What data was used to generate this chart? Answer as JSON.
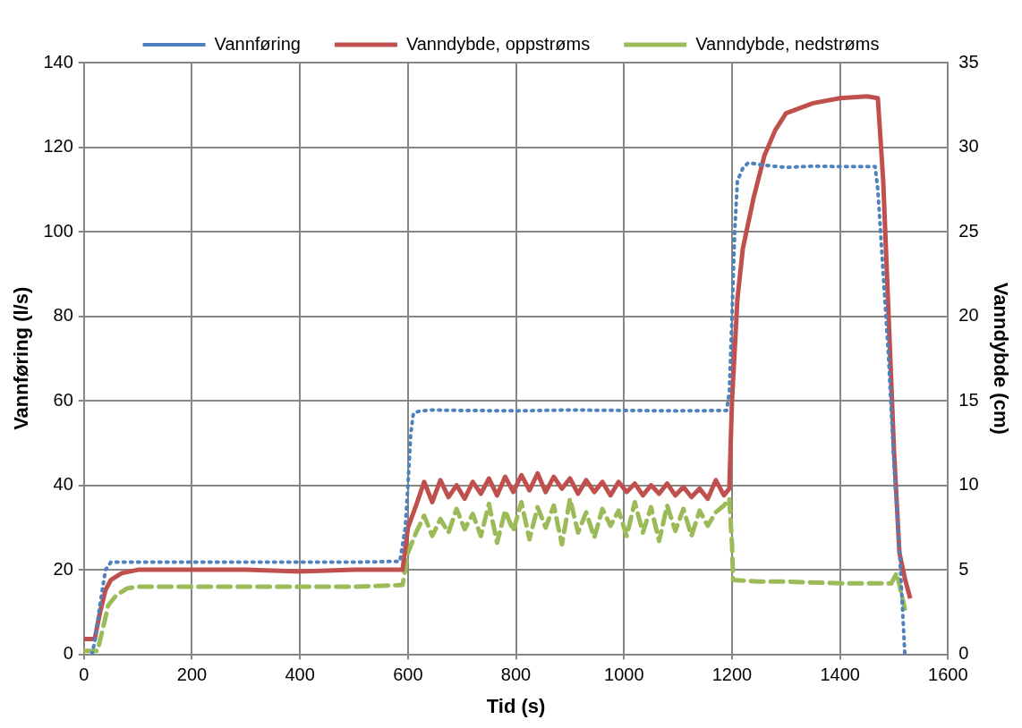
{
  "chart_data": {
    "type": "line",
    "xlabel": "Tid (s)",
    "ylabel": "Vannføring (l/s)",
    "y2label": "Vanndybde (cm)",
    "xlim": [
      0,
      1600
    ],
    "xticks": [
      0,
      200,
      400,
      600,
      800,
      1000,
      1200,
      1400,
      1600
    ],
    "ylim": [
      0,
      140
    ],
    "yticks": [
      0,
      20,
      40,
      60,
      80,
      100,
      120,
      140
    ],
    "y2lim": [
      0,
      35
    ],
    "y2ticks": [
      0,
      5,
      10,
      15,
      20,
      25,
      30,
      35
    ],
    "grid": true,
    "legend": "top",
    "marker": "none",
    "series": [
      {
        "name": "Vannføring",
        "color": "#4f81bd",
        "line_style": "dotted",
        "axis": "y",
        "x": [
          15,
          20,
          30,
          40,
          50,
          100,
          200,
          300,
          400,
          500,
          585,
          595,
          600,
          605,
          610,
          620,
          640,
          700,
          800,
          900,
          1000,
          1100,
          1190,
          1195,
          1200,
          1205,
          1210,
          1220,
          1230,
          1260,
          1300,
          1350,
          1400,
          1465,
          1470,
          1480,
          1490,
          1500,
          1510,
          1520
        ],
        "values": [
          0,
          3,
          12,
          20,
          21.8,
          21.8,
          21.8,
          21.8,
          21.8,
          21.8,
          22,
          30,
          40,
          52,
          57,
          57.5,
          57.8,
          57.7,
          57.6,
          57.8,
          57.7,
          57.6,
          57.7,
          62,
          80,
          100,
          112,
          115,
          116.3,
          115.7,
          115.2,
          115.5,
          115.4,
          115.4,
          110,
          90,
          70,
          45,
          25,
          0
        ]
      },
      {
        "name": "Vanndybde, oppstrøms",
        "color": "#c0504d",
        "line_style": "solid",
        "axis": "y2",
        "x": [
          0,
          20,
          30,
          40,
          50,
          70,
          100,
          200,
          300,
          400,
          500,
          590,
          600,
          615,
          630,
          645,
          660,
          675,
          690,
          705,
          720,
          735,
          750,
          765,
          780,
          795,
          810,
          825,
          840,
          855,
          870,
          885,
          900,
          915,
          930,
          945,
          960,
          975,
          990,
          1005,
          1020,
          1035,
          1050,
          1065,
          1080,
          1095,
          1110,
          1125,
          1140,
          1155,
          1170,
          1185,
          1195,
          1200,
          1210,
          1220,
          1240,
          1260,
          1280,
          1300,
          1350,
          1400,
          1450,
          1470,
          1480,
          1490,
          1500,
          1510,
          1520,
          1530
        ],
        "values": [
          0.9,
          0.9,
          2.5,
          3.8,
          4.4,
          4.8,
          5,
          5,
          5,
          4.9,
          5,
          5,
          7.5,
          8.8,
          10.2,
          9,
          10.3,
          9.3,
          10,
          9.2,
          10.2,
          9.5,
          10.4,
          9.4,
          10.5,
          9.6,
          10.6,
          9.7,
          10.7,
          9.6,
          10.5,
          9.8,
          10.4,
          9.5,
          10.3,
          9.6,
          10.2,
          9.4,
          10.2,
          9.6,
          10.1,
          9.4,
          10,
          9.5,
          10.1,
          9.4,
          9.9,
          9.3,
          9.8,
          9.2,
          10.3,
          9.4,
          9.8,
          15,
          21,
          24,
          27,
          29.5,
          31,
          32,
          32.6,
          32.9,
          33,
          32.9,
          28,
          20,
          12,
          6,
          4.5,
          3.3
        ]
      },
      {
        "name": "Vanndybde, nedstrøms",
        "color": "#9bbb59",
        "line_style": "dashed",
        "axis": "y2",
        "x": [
          0,
          25,
          35,
          45,
          60,
          80,
          100,
          200,
          300,
          400,
          500,
          590,
          600,
          615,
          630,
          645,
          660,
          675,
          690,
          705,
          720,
          735,
          750,
          765,
          780,
          795,
          810,
          825,
          840,
          855,
          870,
          885,
          900,
          915,
          930,
          945,
          960,
          975,
          990,
          1005,
          1020,
          1035,
          1050,
          1065,
          1080,
          1095,
          1110,
          1125,
          1140,
          1155,
          1170,
          1185,
          1195,
          1200,
          1202,
          1250,
          1300,
          1400,
          1490,
          1495,
          1505,
          1520
        ],
        "values": [
          0.2,
          0.2,
          1.5,
          2.9,
          3.5,
          3.9,
          4,
          4,
          4,
          4,
          4,
          4.1,
          6,
          7.2,
          8.2,
          7,
          8,
          7.2,
          8.6,
          7.4,
          8.3,
          7,
          8.9,
          6.6,
          8.5,
          7.3,
          9,
          6.8,
          8.7,
          7.5,
          8.8,
          6.5,
          9.2,
          7.2,
          8.4,
          6.9,
          8.6,
          7.6,
          8.5,
          7,
          9,
          7.2,
          8.7,
          6.7,
          8.8,
          7.3,
          8.6,
          7,
          8.5,
          7.6,
          8.4,
          8.8,
          9.2,
          6.5,
          4.4,
          4.3,
          4.3,
          4.2,
          4.2,
          4.2,
          4.8,
          2.7
        ]
      }
    ]
  }
}
